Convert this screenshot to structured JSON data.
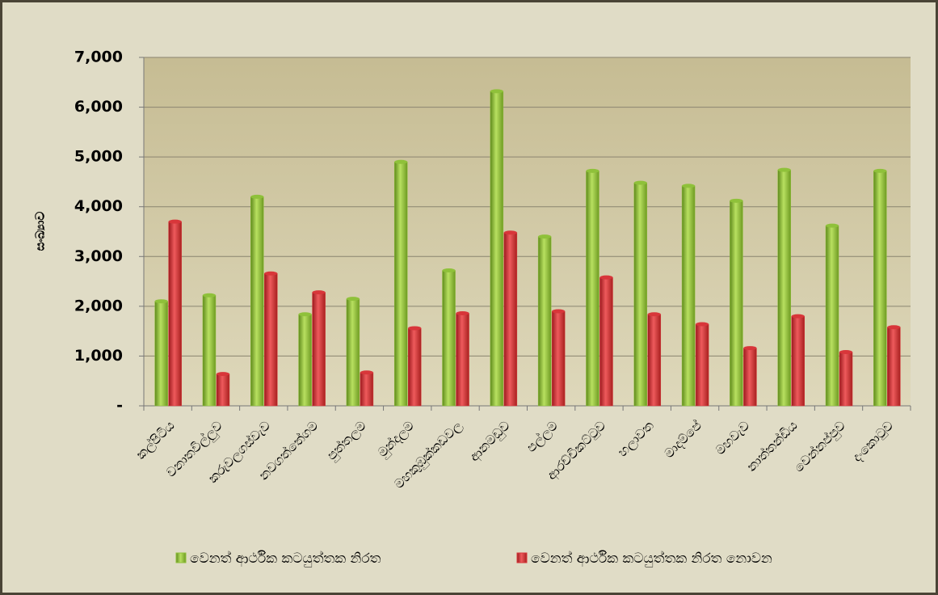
{
  "chart_data": {
    "type": "bar",
    "ylabel": "සංඛ්‍යාව",
    "categories": [
      "කල්පිටිය",
      "වනාතවිල්ලුව",
      "කරුවලගස්වැව",
      "නවගත්තේගම",
      "පුත්තලම",
      "මුන්දලම",
      "මහකුඹුක්කඩවල",
      "ආනමඩුව",
      "පල්ලම",
      "ආරච්චිකට්ටුව",
      "හලාවත",
      "මාදම්පේ",
      "මහවැව",
      "නාත්තන්ඩිය",
      "වෙන්නප්පුව",
      "දංකොටුව"
    ],
    "series": [
      {
        "name": "වෙනත් ආර්ථික කටයුත්තක නිරත",
        "color": "#8fc13a",
        "values": [
          2100,
          2220,
          4200,
          1840,
          2150,
          4900,
          2720,
          6320,
          3400,
          4720,
          4480,
          4420,
          4120,
          4740,
          3620,
          4720
        ]
      },
      {
        "name": "වෙනත් ආර්ථික කටයුත්තක නිරත නොවන",
        "color": "#d8363a",
        "values": [
          3700,
          640,
          2660,
          2280,
          670,
          1560,
          1860,
          3480,
          1900,
          2580,
          1840,
          1640,
          1160,
          1800,
          1080,
          1580
        ]
      }
    ],
    "ylim": [
      0,
      7000
    ],
    "yticks": [
      {
        "value": 0,
        "label": "-"
      },
      {
        "value": 1000,
        "label": "1,000"
      },
      {
        "value": 2000,
        "label": "2,000"
      },
      {
        "value": 3000,
        "label": "3,000"
      },
      {
        "value": 4000,
        "label": "4,000"
      },
      {
        "value": 5000,
        "label": "5,000"
      },
      {
        "value": 6000,
        "label": "6,000"
      },
      {
        "value": 7000,
        "label": "7,000"
      }
    ],
    "grid": true,
    "legend": "bottom"
  }
}
